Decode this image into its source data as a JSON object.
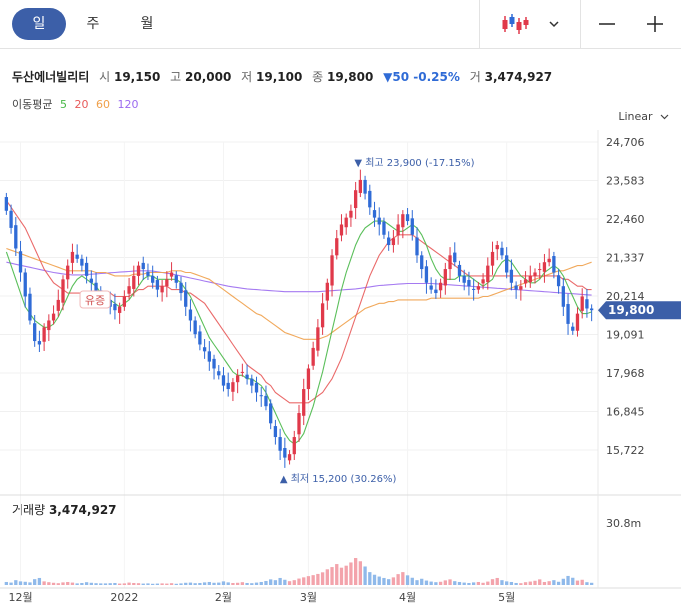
{
  "tabs": [
    "일",
    "주",
    "월"
  ],
  "active_tab": 0,
  "stock": {
    "name": "두산에너빌리티",
    "open_label": "시",
    "open": "19,150",
    "high_label": "고",
    "high": "20,000",
    "low_label": "저",
    "low": "19,100",
    "close_label": "종",
    "close": "19,800",
    "change": "▼50 -0.25%",
    "volume_label": "거",
    "volume": "3,474,927"
  },
  "ma_legend": {
    "label": "이동평균",
    "periods": [
      "5",
      "20",
      "60",
      "120"
    ],
    "colors": [
      "#48b848",
      "#e85a5a",
      "#f0a04a",
      "#9b6bf0"
    ]
  },
  "scale_mode": "Linear",
  "volume_panel": {
    "title": "거래량",
    "value": "3,474,927",
    "axis_label": "30.8m"
  },
  "colors": {
    "up": "#e0394a",
    "down": "#2f6bd6",
    "accent": "#3c5fa8",
    "vol_up": "#f3a3ab",
    "vol_down": "#8fb9ea"
  },
  "chart_data": {
    "type": "candlestick",
    "y_ticks": [
      "24,706",
      "23,583",
      "22,460",
      "21,337",
      "20,214",
      "19,091",
      "17,968",
      "16,845",
      "15,722"
    ],
    "ylim": [
      15722,
      24706
    ],
    "x_ticks": [
      "12월",
      "2022",
      "2월",
      "3월",
      "4월",
      "5월"
    ],
    "current_price_label": "19,800",
    "current_price": 19800,
    "high_annotation": "최고 23,900 (-17.15%)",
    "low_annotation": "최저 15,200 (30.26%)",
    "event_label": "유증",
    "series": {
      "close": [
        22700,
        22200,
        21600,
        20900,
        20200,
        19500,
        18900,
        18800,
        19300,
        19500,
        19700,
        20100,
        20700,
        21100,
        21500,
        21300,
        21100,
        20800,
        20600,
        20300,
        20200,
        20100,
        19900,
        19800,
        19900,
        20200,
        20500,
        20800,
        21100,
        21000,
        20800,
        20600,
        20400,
        20500,
        20700,
        20900,
        20600,
        20300,
        19900,
        19500,
        19100,
        18800,
        18600,
        18300,
        18100,
        17900,
        17600,
        17500,
        17700,
        17900,
        18000,
        17800,
        17600,
        17400,
        17300,
        17000,
        16500,
        16100,
        15700,
        15500,
        15600,
        16100,
        16800,
        17500,
        18100,
        18700,
        19300,
        20000,
        20600,
        21400,
        21900,
        22300,
        22500,
        22700,
        23300,
        23600,
        23200,
        22800,
        22500,
        22300,
        22000,
        21700,
        21900,
        22300,
        22600,
        22400,
        22000,
        21400,
        21000,
        20600,
        20400,
        20300,
        20600,
        21000,
        21400,
        21200,
        20800,
        20600,
        20500,
        20400,
        20500,
        20700,
        21100,
        21500,
        21700,
        21400,
        20900,
        20600,
        20400,
        20500,
        20700,
        20800,
        20900,
        21000,
        21200,
        21300,
        20900,
        20500,
        19900,
        19400,
        19200,
        19700,
        20200,
        19850,
        19800
      ],
      "ma5": [
        21500,
        21100,
        20700,
        20300,
        19900,
        19700,
        19500,
        19400,
        19300,
        19300,
        19400,
        19600,
        19900,
        20200,
        20500,
        20700,
        20800,
        20700,
        20600,
        20500,
        20300,
        20200,
        20100,
        20000,
        19900,
        20000,
        20100,
        20300,
        20500,
        20700,
        20800,
        20800,
        20700,
        20700,
        20700,
        20700,
        20700,
        20600,
        20400,
        20200,
        19900,
        19600,
        19300,
        19000,
        18800,
        18600,
        18400,
        18200,
        18000,
        17900,
        17900,
        17800,
        17800,
        17700,
        17600,
        17400,
        17100,
        16800,
        16500,
        16200,
        16000,
        15900,
        16000,
        16200,
        16600,
        17000,
        17500,
        18000,
        18600,
        19200,
        19800,
        20400,
        20900,
        21300,
        21700,
        22000,
        22200,
        22300,
        22400,
        22400,
        22400,
        22300,
        22200,
        22100,
        22100,
        22200,
        22300,
        22200,
        22000,
        21700,
        21300,
        21000,
        20800,
        20700,
        20700,
        20700,
        20800,
        20800,
        20800,
        20700,
        20600,
        20500,
        20600,
        20700,
        21000,
        21200,
        21300,
        21200,
        21000,
        20800,
        20700,
        20600,
        20600,
        20700,
        20900,
        21000,
        21100,
        21000,
        20800,
        20500,
        20200,
        19900,
        19700,
        19700,
        19750
      ],
      "ma20": [
        23000,
        22800,
        22600,
        22400,
        22200,
        21900,
        21600,
        21300,
        21000,
        20800,
        20600,
        20500,
        20400,
        20300,
        20300,
        20300,
        20300,
        20300,
        20300,
        20300,
        20300,
        20300,
        20300,
        20200,
        20200,
        20200,
        20200,
        20300,
        20400,
        20400,
        20500,
        20500,
        20500,
        20500,
        20500,
        20400,
        20400,
        20400,
        20300,
        20300,
        20200,
        20100,
        20000,
        19800,
        19600,
        19400,
        19200,
        19000,
        18800,
        18600,
        18400,
        18200,
        18100,
        18000,
        17900,
        17700,
        17600,
        17400,
        17300,
        17200,
        17100,
        17100,
        17100,
        17100,
        17100,
        17200,
        17300,
        17400,
        17600,
        17800,
        18100,
        18400,
        18800,
        19200,
        19600,
        20000,
        20400,
        20800,
        21100,
        21400,
        21600,
        21800,
        21900,
        22000,
        22000,
        22000,
        22000,
        21900,
        21800,
        21700,
        21600,
        21500,
        21400,
        21300,
        21200,
        21100,
        21000,
        20900,
        20800,
        20800,
        20800,
        20800,
        20800,
        20800,
        20800,
        20800,
        20800,
        20800,
        20800,
        20800,
        20800,
        20800,
        20800,
        20800,
        20800,
        20800,
        20800,
        20800,
        20700,
        20700,
        20600,
        20500,
        20500,
        20400,
        20400
      ],
      "ma60": [
        21600,
        21550,
        21500,
        21450,
        21400,
        21350,
        21300,
        21250,
        21200,
        21150,
        21100,
        21050,
        21000,
        20950,
        20950,
        20950,
        20950,
        20950,
        20950,
        20900,
        20900,
        20900,
        20850,
        20800,
        20800,
        20800,
        20800,
        20850,
        20850,
        20850,
        20900,
        20900,
        20900,
        20900,
        20900,
        20950,
        20950,
        20950,
        20900,
        20900,
        20850,
        20800,
        20750,
        20700,
        20600,
        20500,
        20400,
        20300,
        20200,
        20100,
        20000,
        19900,
        19800,
        19700,
        19650,
        19550,
        19450,
        19350,
        19250,
        19150,
        19100,
        19050,
        19000,
        18950,
        18950,
        18950,
        18950,
        19000,
        19050,
        19150,
        19250,
        19350,
        19450,
        19550,
        19650,
        19750,
        19850,
        19900,
        19950,
        20000,
        20000,
        20050,
        20050,
        20100,
        20100,
        20100,
        20100,
        20100,
        20100,
        20100,
        20150,
        20150,
        20150,
        20150,
        20150,
        20150,
        20150,
        20150,
        20150,
        20150,
        20150,
        20200,
        20200,
        20250,
        20300,
        20350,
        20400,
        20450,
        20500,
        20550,
        20600,
        20650,
        20700,
        20750,
        20800,
        20850,
        20900,
        20950,
        20950,
        21000,
        21050,
        21100,
        21100,
        21150,
        21200
      ],
      "ma120": [
        21200,
        21170,
        21140,
        21110,
        21080,
        21050,
        21020,
        20990,
        20960,
        20930,
        20900,
        20880,
        20860,
        20840,
        20830,
        20830,
        20830,
        20840,
        20850,
        20860,
        20870,
        20880,
        20890,
        20900,
        20910,
        20920,
        20930,
        20940,
        20950,
        20950,
        20950,
        20940,
        20920,
        20900,
        20880,
        20860,
        20830,
        20800,
        20770,
        20740,
        20710,
        20680,
        20650,
        20620,
        20590,
        20560,
        20530,
        20500,
        20480,
        20460,
        20440,
        20420,
        20410,
        20400,
        20390,
        20380,
        20370,
        20360,
        20350,
        20340,
        20340,
        20340,
        20340,
        20340,
        20340,
        20340,
        20340,
        20350,
        20360,
        20370,
        20380,
        20390,
        20400,
        20410,
        20420,
        20440,
        20460,
        20480,
        20500,
        20520,
        20530,
        20540,
        20550,
        20560,
        20570,
        20580,
        20580,
        20580,
        20580,
        20580,
        20580,
        20570,
        20560,
        20550,
        20540,
        20530,
        20520,
        20510,
        20500,
        20490,
        20480,
        20470,
        20460,
        20450,
        20440,
        20430,
        20420,
        20410,
        20400,
        20390,
        20380,
        20370,
        20360,
        20350,
        20340,
        20330,
        20320,
        20310,
        20300,
        20290,
        20280,
        20270,
        20260,
        20250,
        20240
      ],
      "volume": [
        1.5,
        1.2,
        2.4,
        1.8,
        1.6,
        1.3,
        2.9,
        3.5,
        1.8,
        1.4,
        1.1,
        0.9,
        1.3,
        1.5,
        1.2,
        0.8,
        1.0,
        1.4,
        1.1,
        0.9,
        0.8,
        0.8,
        0.9,
        1.0,
        0.7,
        0.8,
        1.2,
        1.0,
        0.9,
        0.7,
        0.8,
        0.6,
        0.7,
        0.8,
        0.7,
        0.9,
        0.6,
        0.8,
        1.1,
        1.2,
        0.9,
        1.0,
        1.3,
        1.5,
        1.1,
        1.2,
        1.8,
        1.3,
        1.0,
        1.1,
        1.4,
        1.0,
        0.9,
        1.2,
        1.5,
        2.0,
        2.8,
        2.4,
        3.5,
        2.6,
        1.9,
        2.4,
        3.2,
        3.8,
        4.4,
        4.9,
        5.5,
        6.3,
        7.8,
        8.9,
        10.4,
        8.6,
        9.6,
        11.2,
        13.4,
        11.8,
        9.2,
        6.4,
        5.1,
        4.2,
        3.5,
        2.9,
        3.8,
        5.4,
        6.4,
        4.8,
        3.6,
        2.4,
        3.1,
        2.2,
        1.7,
        1.4,
        1.6,
        2.3,
        2.8,
        1.9,
        1.5,
        1.2,
        1.0,
        1.3,
        1.5,
        1.1,
        1.7,
        2.9,
        3.5,
        2.4,
        1.8,
        1.5,
        1.0,
        0.9,
        1.4,
        1.7,
        2.1,
        2.8,
        1.5,
        1.9,
        2.4,
        1.6,
        3.1,
        4.5,
        3.6,
        2.2,
        2.6,
        1.4,
        1.1
      ]
    }
  }
}
